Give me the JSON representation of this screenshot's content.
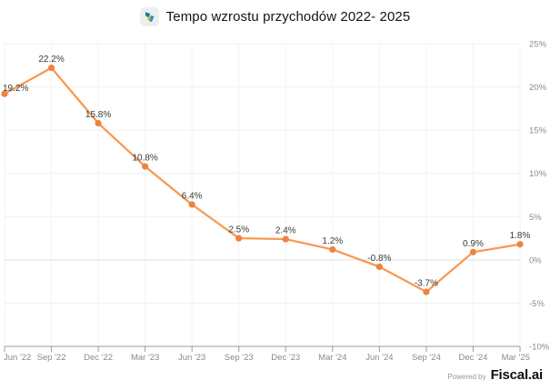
{
  "header": {
    "title": "Tempo wzrostu przychodów 2022- 2025"
  },
  "footer": {
    "powered_by": "Powered by",
    "brand": "Fiscal.ai"
  },
  "chart_data": {
    "type": "line",
    "title": "Tempo wzrostu przychodów 2022- 2025",
    "xlabel": "",
    "ylabel": "",
    "x_labels": [
      "Jun '22",
      "Sep '22",
      "Dec '22",
      "Mar '23",
      "Jun '23",
      "Sep '23",
      "Dec '23",
      "Mar '24",
      "Jun '24",
      "Sep '24",
      "Dec '24",
      "Mar '25"
    ],
    "values": [
      19.2,
      22.2,
      15.8,
      10.8,
      6.4,
      2.5,
      2.4,
      1.2,
      -0.8,
      -3.7,
      0.9,
      1.8
    ],
    "point_labels": [
      "19.2%",
      "22.2%",
      "15.8%",
      "10.8%",
      "6.4%",
      "2.5%",
      "2.4%",
      "1.2%",
      "-0.8%",
      "-3.7%",
      "0.9%",
      "1.8%"
    ],
    "y_ticks": [
      "25%",
      "20%",
      "15%",
      "10%",
      "5%",
      "0%",
      "-5%",
      "-10%"
    ],
    "y_tick_values": [
      25,
      20,
      15,
      10,
      5,
      0,
      -5,
      -10
    ],
    "ylim": [
      -10,
      25
    ],
    "unit": "%",
    "grid": true,
    "y_axis_side": "right",
    "legend": "none",
    "colors": {
      "line": "#F8974F",
      "marker": "#EE8340",
      "grid_vertical": "#F3F3F3",
      "grid_horizontal": "#F0F0F0",
      "zero_line": "#E2E2E2",
      "axis_line": "#9B9B9B",
      "axis_text": "#8A8A8A",
      "label_text": "#3A3A3A"
    }
  }
}
